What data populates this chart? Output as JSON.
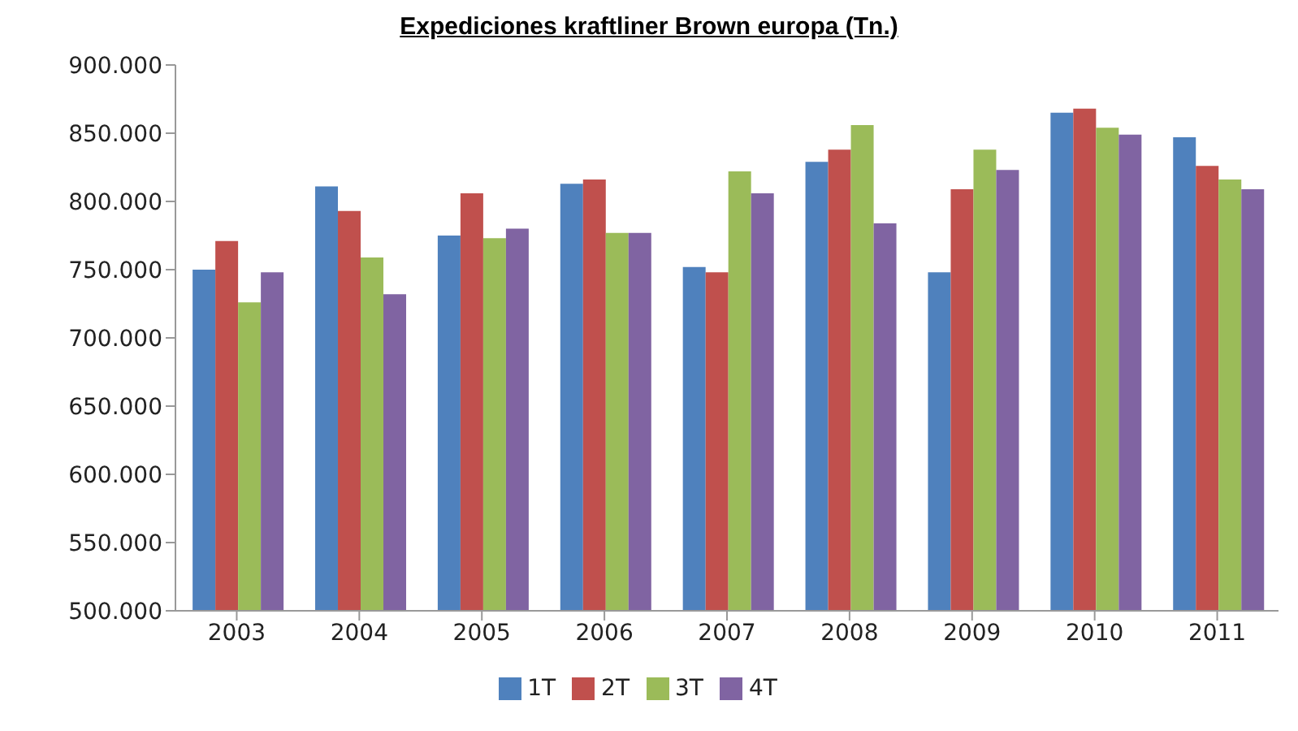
{
  "chart_data": {
    "type": "bar",
    "title": "Expediciones kraftliner  Brown europa (Tn.)",
    "categories": [
      "2003",
      "2004",
      "2005",
      "2006",
      "2007",
      "2008",
      "2009",
      "2010",
      "2011"
    ],
    "series": [
      {
        "name": "1T",
        "color": "#4f81bd",
        "values": [
          750000,
          811000,
          775000,
          813000,
          752000,
          829000,
          748000,
          865000,
          847000
        ]
      },
      {
        "name": "2T",
        "color": "#c0504d",
        "values": [
          771000,
          793000,
          806000,
          816000,
          748000,
          838000,
          809000,
          868000,
          826000
        ]
      },
      {
        "name": "3T",
        "color": "#9bbb59",
        "values": [
          726000,
          759000,
          773000,
          777000,
          822000,
          856000,
          838000,
          854000,
          816000
        ]
      },
      {
        "name": "4T",
        "color": "#8064a2",
        "values": [
          748000,
          732000,
          780000,
          777000,
          806000,
          784000,
          823000,
          849000,
          809000
        ]
      }
    ],
    "ylim": [
      500000,
      900000
    ],
    "yticks": [
      {
        "value": 500000,
        "label": "500.000"
      },
      {
        "value": 550000,
        "label": "550.000"
      },
      {
        "value": 600000,
        "label": "600.000"
      },
      {
        "value": 650000,
        "label": "650.000"
      },
      {
        "value": 700000,
        "label": "700.000"
      },
      {
        "value": 750000,
        "label": "750.000"
      },
      {
        "value": 800000,
        "label": "800.000"
      },
      {
        "value": 850000,
        "label": "850.000"
      },
      {
        "value": 900000,
        "label": "900.000"
      }
    ],
    "grid": false,
    "legend": "bottom"
  }
}
